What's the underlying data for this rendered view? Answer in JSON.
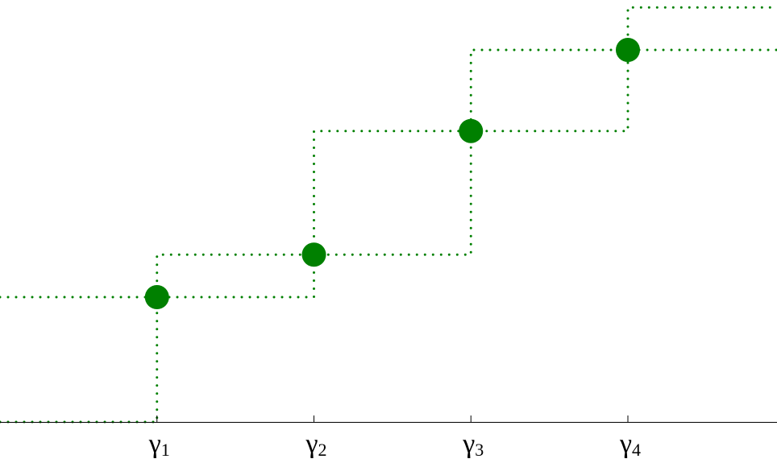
{
  "chart_data": {
    "type": "line",
    "title": "",
    "xlabel": "",
    "ylabel": "",
    "grid": false,
    "legend": "none",
    "marker_color": "#008000",
    "line_style": "dotted",
    "x_ticks": [
      {
        "symbol": "γ",
        "subscript": "1",
        "x": 1
      },
      {
        "symbol": "γ",
        "subscript": "2",
        "x": 2
      },
      {
        "symbol": "γ",
        "subscript": "3",
        "x": 3
      },
      {
        "symbol": "γ",
        "subscript": "4",
        "x": 4
      }
    ],
    "points": [
      {
        "x": 1,
        "y": 1
      },
      {
        "x": 2,
        "y": 1.34
      },
      {
        "x": 3,
        "y": 2.33
      },
      {
        "x": 4,
        "y": 2.98
      }
    ],
    "series": [
      {
        "values": [
          {
            "x": 0,
            "y": 0
          },
          {
            "x": 1,
            "y": 0
          },
          {
            "x": 1,
            "y": 1.34
          },
          {
            "x": 2,
            "y": 1.34
          },
          {
            "x": 2,
            "y": 2.33
          },
          {
            "x": 3,
            "y": 2.33
          },
          {
            "x": 3,
            "y": 2.98
          },
          {
            "x": 4,
            "y": 2.98
          },
          {
            "x": 4,
            "y": 3.32
          },
          {
            "x": 4.95,
            "y": 3.32
          }
        ]
      },
      {
        "values": [
          {
            "x": 0,
            "y": 1
          },
          {
            "x": 2,
            "y": 1
          },
          {
            "x": 2,
            "y": 1.34
          },
          {
            "x": 3,
            "y": 1.34
          },
          {
            "x": 3,
            "y": 2.33
          },
          {
            "x": 4,
            "y": 2.33
          },
          {
            "x": 4,
            "y": 2.98
          },
          {
            "x": 4.95,
            "y": 2.98
          }
        ]
      }
    ],
    "xlim": [
      0,
      4.95
    ],
    "ylim": [
      0,
      3.38
    ]
  }
}
